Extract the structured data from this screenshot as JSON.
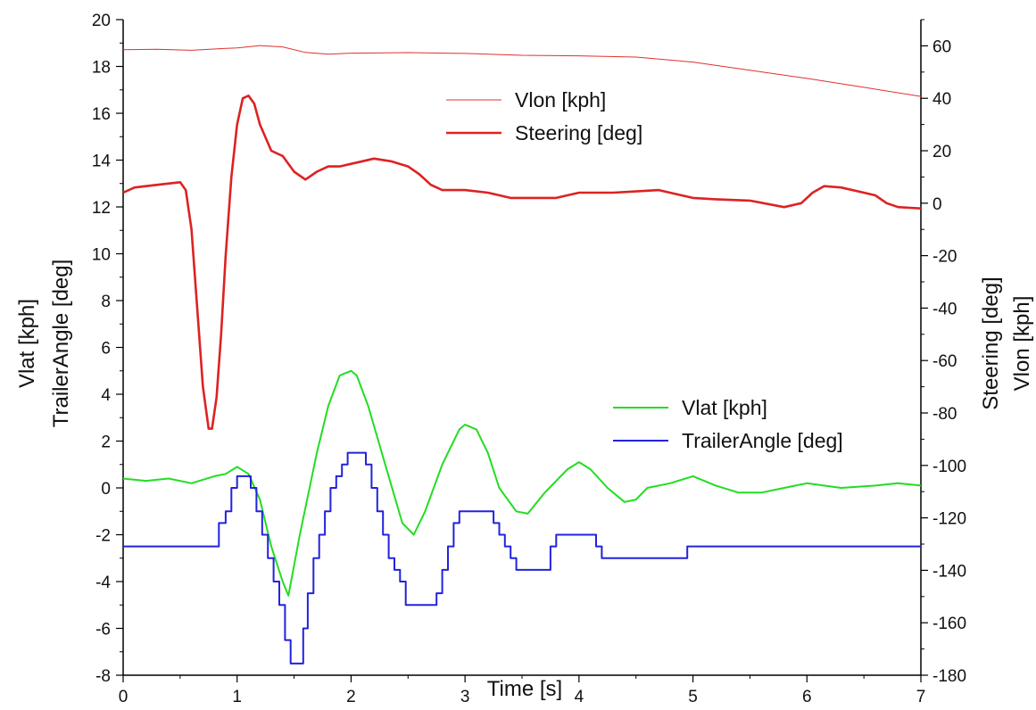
{
  "chart_data": {
    "type": "line",
    "xlabel": "Time [s]",
    "ylabel_left_lines": [
      "Vlat [kph]",
      "TrailerAngle [deg]"
    ],
    "ylabel_right_lines": [
      "Steering [deg]",
      "Vlon [kph]"
    ],
    "xlim": [
      0,
      7
    ],
    "ylim_left": [
      -8,
      20
    ],
    "ylim_right": [
      -180,
      70
    ],
    "x_ticks": [
      "0",
      "1",
      "2",
      "3",
      "4",
      "5",
      "6",
      "7"
    ],
    "y_left_ticks": [
      "-8",
      "-6",
      "-4",
      "-2",
      "0",
      "2",
      "4",
      "6",
      "8",
      "10",
      "12",
      "14",
      "16",
      "18",
      "20"
    ],
    "y_right_ticks": [
      "-180",
      "-160",
      "-140",
      "-120",
      "-100",
      "-80",
      "-60",
      "-40",
      "-20",
      "0",
      "20",
      "40",
      "60"
    ],
    "grid": false,
    "legends": [
      {
        "placement": "top-center",
        "entries": [
          "Vlon [kph]",
          "Steering [deg]"
        ]
      },
      {
        "placement": "middle-right",
        "entries": [
          "Vlat [kph]",
          "TrailerAngle [deg]"
        ]
      }
    ],
    "series": [
      {
        "name": "Vlon [kph]",
        "axis": "right",
        "color": "#e03030",
        "style": "thin",
        "x": [
          0,
          0.3,
          0.6,
          0.9,
          1.0,
          1.2,
          1.4,
          1.6,
          1.8,
          2.0,
          2.5,
          3.0,
          3.5,
          4.0,
          4.5,
          5.0,
          5.5,
          6.0,
          6.5,
          7.0
        ],
        "y": [
          58.5,
          58.7,
          58.3,
          59,
          59.2,
          60.1,
          59.6,
          57.5,
          56.8,
          57.2,
          57.4,
          57.1,
          56.4,
          56.2,
          55.7,
          53.8,
          50.7,
          47.6,
          44.2,
          40.7
        ]
      },
      {
        "name": "Steering [deg]",
        "axis": "right",
        "color": "#dd2222",
        "style": "thick",
        "x": [
          0,
          0.1,
          0.3,
          0.5,
          0.55,
          0.6,
          0.65,
          0.7,
          0.75,
          0.78,
          0.82,
          0.86,
          0.9,
          0.95,
          1.0,
          1.05,
          1.1,
          1.15,
          1.2,
          1.3,
          1.4,
          1.5,
          1.6,
          1.7,
          1.8,
          1.9,
          2.0,
          2.1,
          2.2,
          2.35,
          2.5,
          2.6,
          2.7,
          2.8,
          3.0,
          3.2,
          3.4,
          3.6,
          3.8,
          4.0,
          4.3,
          4.5,
          4.7,
          5.0,
          5.2,
          5.5,
          5.8,
          5.95,
          6.05,
          6.15,
          6.3,
          6.5,
          6.6,
          6.7,
          6.8,
          7.0
        ],
        "y": [
          4,
          6,
          7,
          8,
          5,
          -10,
          -40,
          -70,
          -86,
          -86,
          -74,
          -50,
          -20,
          10,
          30,
          40,
          41,
          38,
          30,
          20,
          18,
          12,
          9,
          12,
          14,
          14,
          15,
          16,
          17,
          16,
          14,
          11,
          7,
          5,
          5,
          4,
          2,
          2,
          2,
          4,
          4,
          4.5,
          5,
          2,
          1.5,
          1,
          -1.5,
          0,
          4,
          6.5,
          6,
          4,
          3,
          0,
          -1.5,
          -2
        ]
      },
      {
        "name": "Vlat [kph]",
        "axis": "left",
        "color": "#22dd22",
        "style": "medium",
        "x": [
          0,
          0.2,
          0.4,
          0.6,
          0.8,
          0.9,
          1.0,
          1.1,
          1.2,
          1.3,
          1.4,
          1.45,
          1.55,
          1.7,
          1.8,
          1.9,
          2.0,
          2.05,
          2.15,
          2.3,
          2.45,
          2.55,
          2.65,
          2.8,
          2.95,
          3.0,
          3.1,
          3.2,
          3.3,
          3.45,
          3.55,
          3.7,
          3.9,
          4.0,
          4.1,
          4.25,
          4.4,
          4.5,
          4.6,
          4.8,
          5.0,
          5.2,
          5.4,
          5.6,
          5.8,
          6.0,
          6.3,
          6.6,
          6.8,
          7.0
        ],
        "y": [
          0.4,
          0.3,
          0.4,
          0.2,
          0.5,
          0.6,
          0.9,
          0.6,
          -0.5,
          -2.5,
          -4.0,
          -4.6,
          -2.0,
          1.5,
          3.5,
          4.8,
          5.0,
          4.8,
          3.5,
          1.0,
          -1.5,
          -2.0,
          -1.0,
          1.0,
          2.5,
          2.7,
          2.5,
          1.5,
          0.0,
          -1.0,
          -1.1,
          -0.2,
          0.8,
          1.1,
          0.8,
          0.0,
          -0.6,
          -0.5,
          0.0,
          0.2,
          0.5,
          0.1,
          -0.2,
          -0.2,
          0.0,
          0.2,
          0.0,
          0.1,
          0.2,
          0.1
        ]
      },
      {
        "name": "TrailerAngle [deg]",
        "axis": "left",
        "color": "#2222dd",
        "style": "medium",
        "x": [
          0,
          0.84,
          0.84,
          0.9,
          0.9,
          0.95,
          0.95,
          1.0,
          1.0,
          1.12,
          1.12,
          1.17,
          1.17,
          1.22,
          1.22,
          1.27,
          1.27,
          1.32,
          1.32,
          1.37,
          1.37,
          1.42,
          1.42,
          1.47,
          1.47,
          1.58,
          1.58,
          1.62,
          1.62,
          1.67,
          1.67,
          1.72,
          1.72,
          1.77,
          1.77,
          1.82,
          1.82,
          1.87,
          1.87,
          1.92,
          1.92,
          1.97,
          1.97,
          2.13,
          2.13,
          2.18,
          2.18,
          2.23,
          2.23,
          2.28,
          2.28,
          2.33,
          2.33,
          2.38,
          2.38,
          2.43,
          2.43,
          2.48,
          2.48,
          2.75,
          2.75,
          2.8,
          2.8,
          2.85,
          2.85,
          2.9,
          2.9,
          2.95,
          2.95,
          3.25,
          3.25,
          3.3,
          3.3,
          3.35,
          3.35,
          3.4,
          3.4,
          3.45,
          3.45,
          3.75,
          3.75,
          3.8,
          3.8,
          4.15,
          4.15,
          4.2,
          4.2,
          4.35,
          4.35,
          4.95,
          4.95,
          7.0
        ],
        "y": [
          -2.5,
          -2.5,
          -1.5,
          -1.5,
          -1.0,
          -1.0,
          0.0,
          0.0,
          0.5,
          0.5,
          0.0,
          0.0,
          -1.0,
          -1.0,
          -2.0,
          -2.0,
          -3.0,
          -3.0,
          -4.0,
          -4.0,
          -5.0,
          -5.0,
          -6.5,
          -6.5,
          -7.5,
          -7.5,
          -6.0,
          -6.0,
          -4.5,
          -4.5,
          -3.0,
          -3.0,
          -2.0,
          -2.0,
          -1.0,
          -1.0,
          0.0,
          0.0,
          0.5,
          0.5,
          1.0,
          1.0,
          1.5,
          1.5,
          1.0,
          1.0,
          0.0,
          0.0,
          -1.0,
          -1.0,
          -2.0,
          -2.0,
          -3.0,
          -3.0,
          -3.5,
          -3.5,
          -4.0,
          -4.0,
          -5.0,
          -5.0,
          -4.5,
          -4.5,
          -3.5,
          -3.5,
          -2.5,
          -2.5,
          -1.5,
          -1.5,
          -1.0,
          -1.0,
          -1.5,
          -1.5,
          -2.0,
          -2.0,
          -2.5,
          -2.5,
          -3.0,
          -3.0,
          -3.5,
          -3.5,
          -2.5,
          -2.5,
          -2.0,
          -2.0,
          -2.5,
          -2.5,
          -3.0,
          -3.0,
          -3.0,
          -3.0,
          -2.5,
          -2.5
        ]
      }
    ]
  }
}
